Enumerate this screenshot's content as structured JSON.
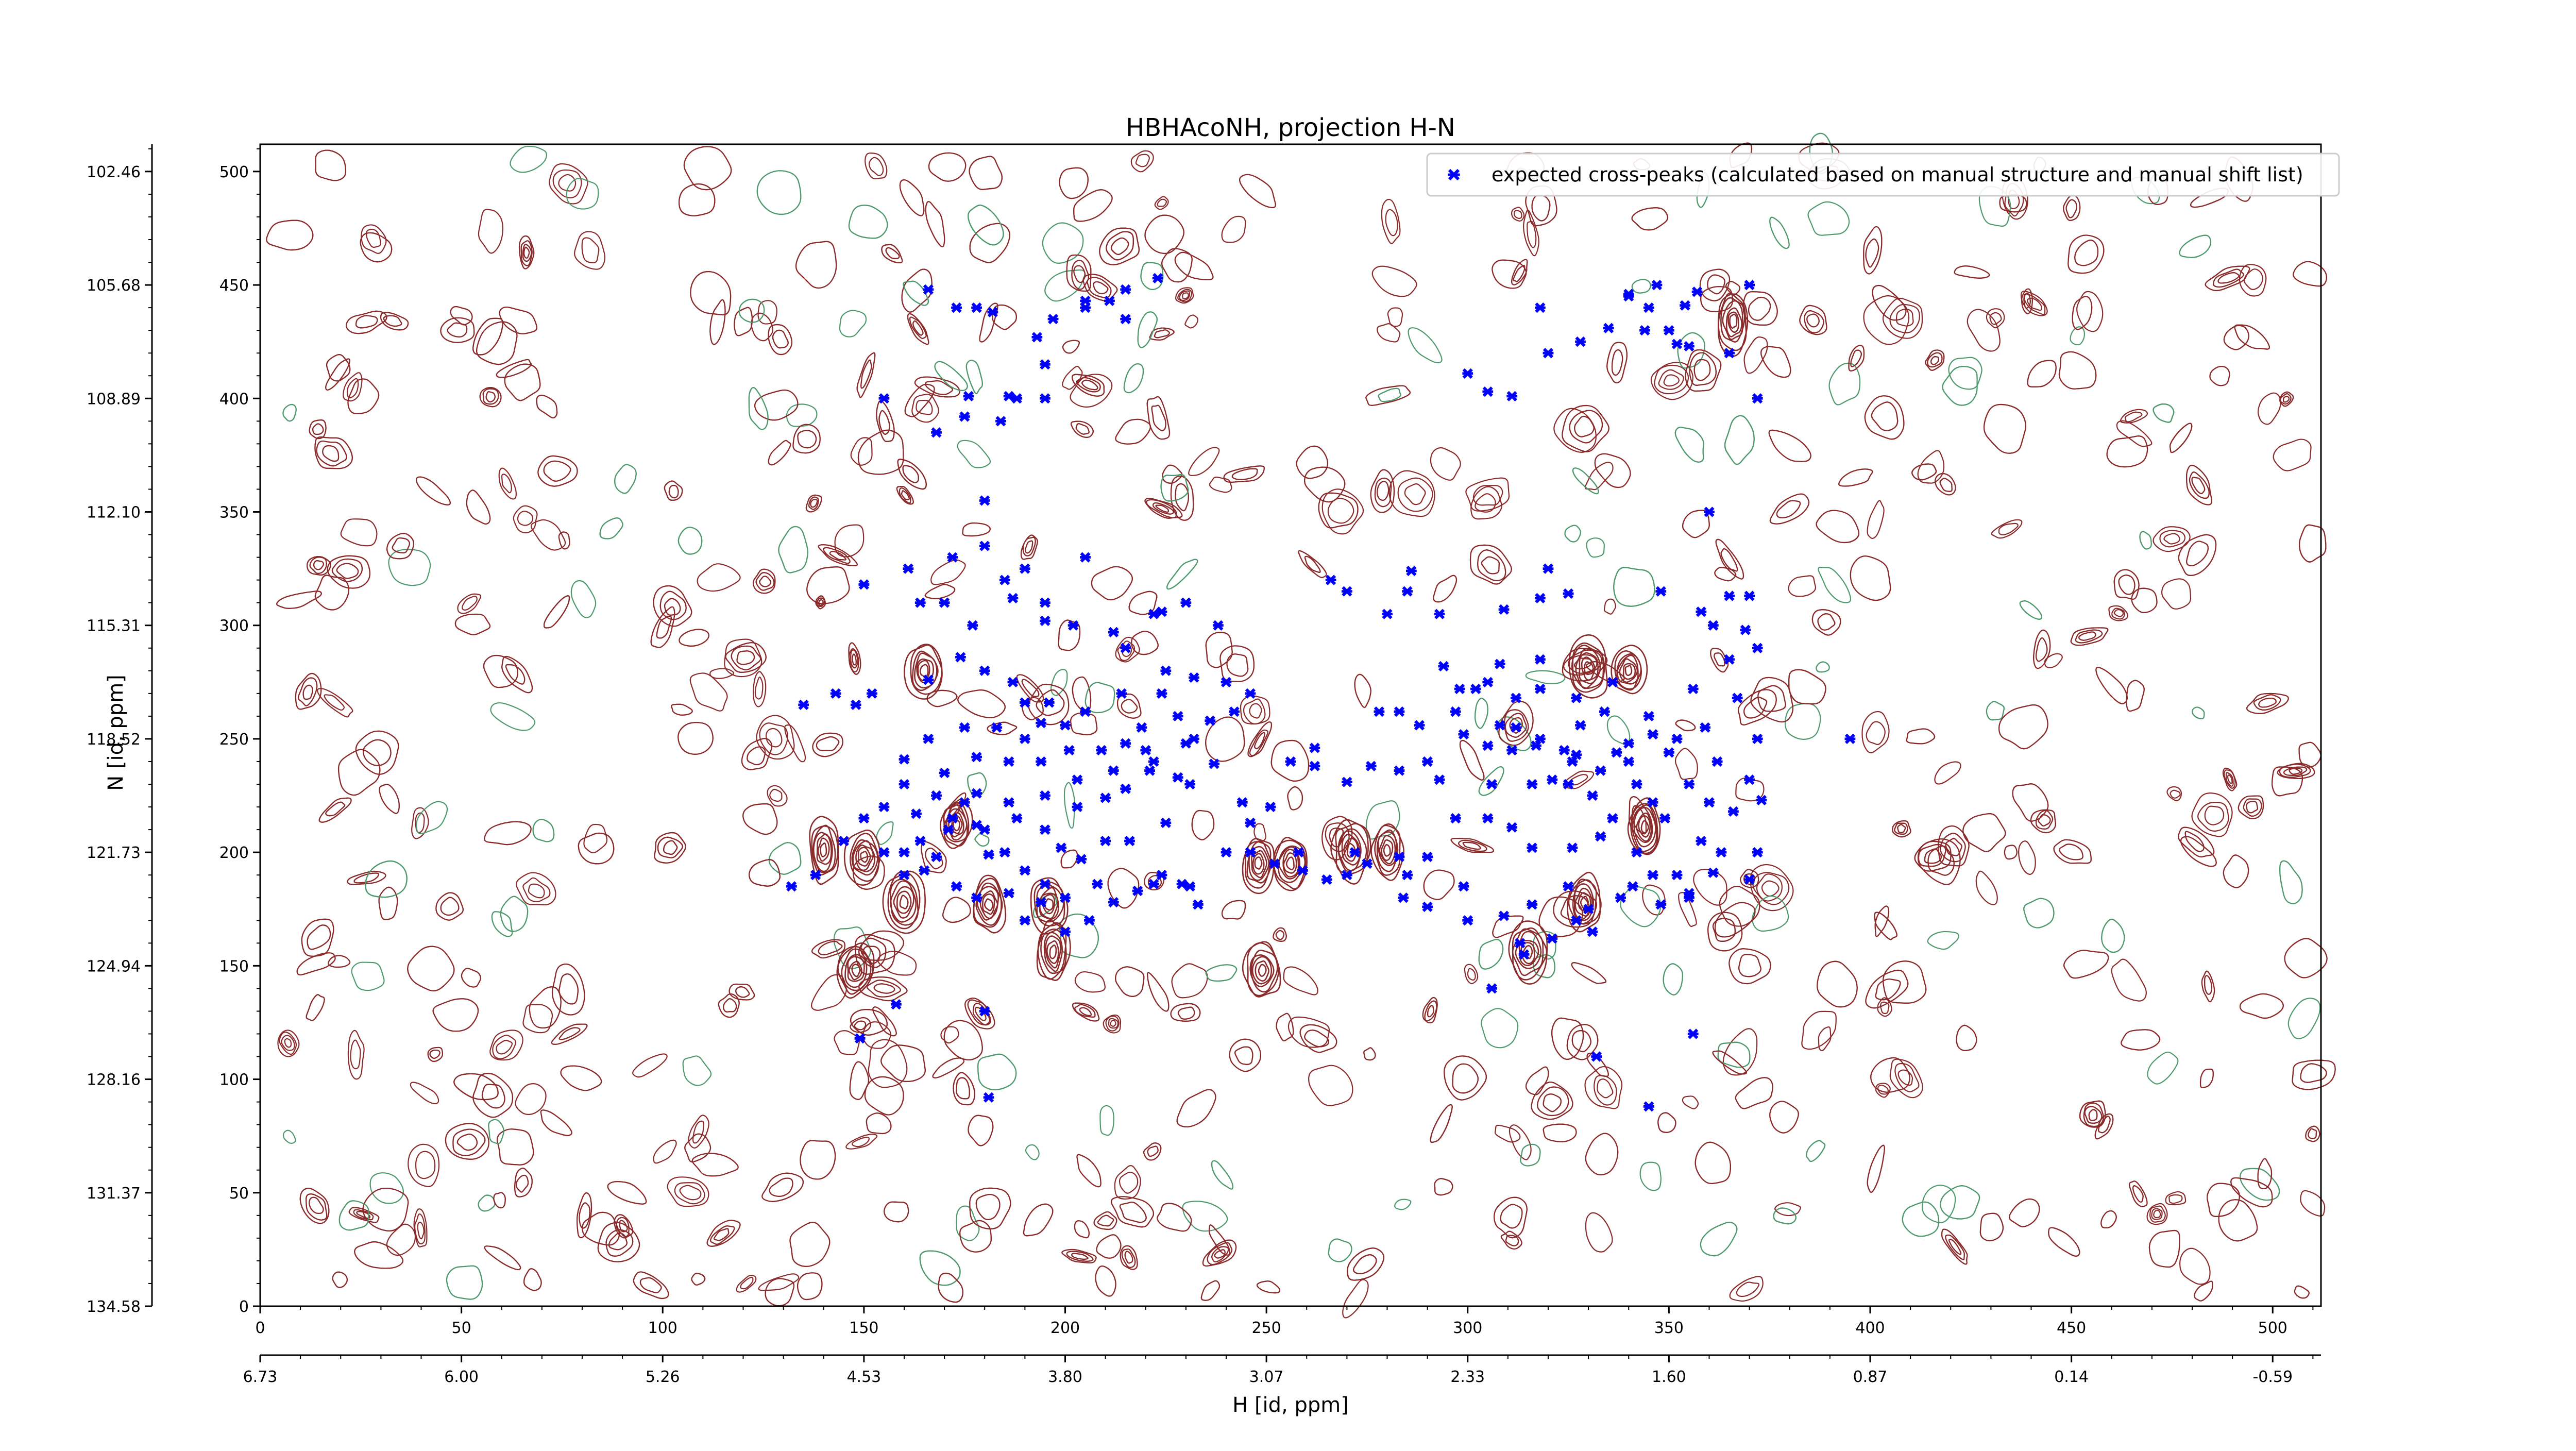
{
  "chart_data": {
    "type": "contour",
    "title": "HBHAcoNH, projection H-N",
    "xlabel": "H [id, ppm]",
    "ylabel": "N [id, ppm]",
    "x_index_range": [
      0,
      512
    ],
    "y_index_range": [
      0,
      512
    ],
    "x_index_ticks": [
      "0",
      "50",
      "100",
      "150",
      "200",
      "250",
      "300",
      "350",
      "400",
      "450",
      "500"
    ],
    "y_index_ticks": [
      "0",
      "50",
      "100",
      "150",
      "200",
      "250",
      "300",
      "350",
      "400",
      "450",
      "500"
    ],
    "x_ppm_ticks": [
      "6.73",
      "6.00",
      "5.26",
      "4.53",
      "3.80",
      "3.07",
      "2.33",
      "1.60",
      "0.87",
      "0.14",
      "-0.59"
    ],
    "y_ppm_ticks": [
      "134.58",
      "131.37",
      "128.16",
      "124.94",
      "121.73",
      "118.52",
      "115.31",
      "112.10",
      "108.89",
      "105.68",
      "102.46"
    ],
    "legend": {
      "position": "upper-right",
      "entries": [
        {
          "label": "expected cross-peaks (calculated based on manual structure and manual shift list)",
          "marker": "x",
          "color": "#0000ff"
        }
      ]
    },
    "colors": {
      "positive_contour": "#8b2a2a",
      "negative_contour": "#4e9a6e",
      "marker": "#0000ff"
    },
    "strong_peaks": [
      [
        140,
        201
      ],
      [
        150,
        198
      ],
      [
        148,
        148
      ],
      [
        160,
        178
      ],
      [
        165,
        280
      ],
      [
        173,
        212
      ],
      [
        181,
        177
      ],
      [
        196,
        177
      ],
      [
        197,
        156
      ],
      [
        248,
        195
      ],
      [
        256,
        195
      ],
      [
        249,
        148
      ],
      [
        271,
        201
      ],
      [
        280,
        201
      ],
      [
        315,
        156
      ],
      [
        329,
        178
      ],
      [
        330,
        281
      ],
      [
        340,
        280
      ],
      [
        344,
        211
      ],
      [
        366,
        434
      ]
    ],
    "series": [
      {
        "name": "expected cross-peaks (calculated based on manual structure and manual shift list)",
        "points": [
          [
            173,
            440
          ],
          [
            178,
            440
          ],
          [
            176,
            401
          ],
          [
            186,
            401
          ],
          [
            166,
            448
          ],
          [
            193,
            427
          ],
          [
            197,
            435
          ],
          [
            205,
            443
          ],
          [
            211,
            443
          ],
          [
            215,
            448
          ],
          [
            155,
            400
          ],
          [
            170,
            310
          ],
          [
            164,
            310
          ],
          [
            187,
            312
          ],
          [
            177,
            300
          ],
          [
            195,
            310
          ],
          [
            190,
            325
          ],
          [
            205,
            330
          ],
          [
            180,
            355
          ],
          [
            150,
            318
          ],
          [
            135,
            265
          ],
          [
            143,
            270
          ],
          [
            148,
            265
          ],
          [
            152,
            270
          ],
          [
            166,
            276
          ],
          [
            174,
            286
          ],
          [
            180,
            280
          ],
          [
            187,
            275
          ],
          [
            190,
            266
          ],
          [
            190,
            250
          ],
          [
            166,
            250
          ],
          [
            175,
            255
          ],
          [
            183,
            255
          ],
          [
            194,
            257
          ],
          [
            200,
            256
          ],
          [
            196,
            266
          ],
          [
            205,
            262
          ],
          [
            209,
            245
          ],
          [
            215,
            248
          ],
          [
            219,
            255
          ],
          [
            160,
            241
          ],
          [
            170,
            235
          ],
          [
            178,
            242
          ],
          [
            186,
            240
          ],
          [
            194,
            240
          ],
          [
            201,
            245
          ],
          [
            212,
            236
          ],
          [
            221,
            236
          ],
          [
            228,
            233
          ],
          [
            237,
            239
          ],
          [
            160,
            230
          ],
          [
            168,
            225
          ],
          [
            178,
            226
          ],
          [
            186,
            222
          ],
          [
            195,
            225
          ],
          [
            203,
            232
          ],
          [
            210,
            224
          ],
          [
            215,
            228
          ],
          [
            231,
            230
          ],
          [
            222,
            240
          ],
          [
            150,
            215
          ],
          [
            155,
            220
          ],
          [
            163,
            217
          ],
          [
            171,
            210
          ],
          [
            180,
            210
          ],
          [
            188,
            215
          ],
          [
            195,
            210
          ],
          [
            203,
            220
          ],
          [
            216,
            205
          ],
          [
            225,
            213
          ],
          [
            132,
            185
          ],
          [
            138,
            190
          ],
          [
            145,
            205
          ],
          [
            155,
            200
          ],
          [
            160,
            190
          ],
          [
            165,
            192
          ],
          [
            173,
            185
          ],
          [
            178,
            180
          ],
          [
            186,
            182
          ],
          [
            195,
            186
          ],
          [
            200,
            180
          ],
          [
            208,
            186
          ],
          [
            218,
            183
          ],
          [
            222,
            186
          ],
          [
            229,
            186
          ],
          [
            233,
            177
          ],
          [
            240,
            200
          ],
          [
            246,
            213
          ],
          [
            252,
            195
          ],
          [
            258,
            200
          ],
          [
            265,
            188
          ],
          [
            272,
            200
          ],
          [
            283,
            198
          ],
          [
            290,
            198
          ],
          [
            297,
            215
          ],
          [
            305,
            215
          ],
          [
            311,
            211
          ],
          [
            316,
            202
          ],
          [
            326,
            202
          ],
          [
            333,
            207
          ],
          [
            262,
            238
          ],
          [
            270,
            231
          ],
          [
            276,
            238
          ],
          [
            283,
            236
          ],
          [
            293,
            232
          ],
          [
            306,
            230
          ],
          [
            316,
            230
          ],
          [
            321,
            232
          ],
          [
            326,
            240
          ],
          [
            333,
            236
          ],
          [
            278,
            262
          ],
          [
            288,
            256
          ],
          [
            297,
            262
          ],
          [
            308,
            256
          ],
          [
            312,
            255
          ],
          [
            317,
            247
          ],
          [
            324,
            245
          ],
          [
            328,
            256
          ],
          [
            334,
            262
          ],
          [
            345,
            260
          ],
          [
            256,
            240
          ],
          [
            262,
            246
          ],
          [
            251,
            220
          ],
          [
            244,
            222
          ],
          [
            298,
            272
          ],
          [
            305,
            275
          ],
          [
            312,
            268
          ],
          [
            318,
            272
          ],
          [
            327,
            268
          ],
          [
            336,
            275
          ],
          [
            340,
            240
          ],
          [
            352,
            250
          ],
          [
            355,
            230
          ],
          [
            360,
            222
          ],
          [
            366,
            218
          ],
          [
            363,
            200
          ],
          [
            352,
            190
          ],
          [
            370,
            188
          ],
          [
            372,
            200
          ],
          [
            349,
            215
          ],
          [
            346,
            222
          ],
          [
            342,
            230
          ],
          [
            331,
            225
          ],
          [
            325,
            230
          ],
          [
            336,
            215
          ],
          [
            358,
            205
          ],
          [
            342,
            200
          ],
          [
            355,
            180
          ],
          [
            361,
            191
          ],
          [
            330,
            175
          ],
          [
            321,
            162
          ],
          [
            327,
            170
          ],
          [
            313,
            160
          ],
          [
            306,
            140
          ],
          [
            314,
            155
          ],
          [
            331,
            165
          ],
          [
            338,
            180
          ],
          [
            348,
            177
          ],
          [
            355,
            182
          ],
          [
            346,
            190
          ],
          [
            283,
            262
          ],
          [
            290,
            240
          ],
          [
            299,
            252
          ],
          [
            305,
            247
          ],
          [
            318,
            250
          ],
          [
            327,
            243
          ],
          [
            311,
            245
          ],
          [
            337,
            244
          ],
          [
            346,
            252
          ],
          [
            359,
            255
          ],
          [
            286,
            324
          ],
          [
            280,
            305
          ],
          [
            270,
            315
          ],
          [
            266,
            320
          ],
          [
            285,
            315
          ],
          [
            293,
            305
          ],
          [
            309,
            307
          ],
          [
            318,
            312
          ],
          [
            320,
            325
          ],
          [
            325,
            314
          ],
          [
            318,
            285
          ],
          [
            308,
            283
          ],
          [
            302,
            272
          ],
          [
            294,
            282
          ],
          [
            340,
            248
          ],
          [
            350,
            244
          ],
          [
            362,
            240
          ],
          [
            370,
            232
          ],
          [
            373,
            223
          ],
          [
            360,
            350
          ],
          [
            358,
            306
          ],
          [
            370,
            313
          ],
          [
            365,
            313
          ],
          [
            348,
            315
          ],
          [
            365,
            285
          ],
          [
            356,
            272
          ],
          [
            367,
            268
          ],
          [
            372,
            290
          ],
          [
            361,
            300
          ],
          [
            369,
            298
          ],
          [
            318,
            440
          ],
          [
            340,
            446
          ],
          [
            347,
            450
          ],
          [
            350,
            430
          ],
          [
            345,
            440
          ],
          [
            355,
            423
          ],
          [
            357,
            447
          ],
          [
            372,
            400
          ],
          [
            365,
            420
          ],
          [
            370,
            450
          ],
          [
            305,
            403
          ],
          [
            320,
            420
          ],
          [
            328,
            425
          ],
          [
            340,
            445
          ],
          [
            354,
            441
          ],
          [
            344,
            430
          ],
          [
            352,
            424
          ],
          [
            335,
            431
          ],
          [
            300,
            411
          ],
          [
            311,
            401
          ],
          [
            205,
            440
          ],
          [
            215,
            435
          ],
          [
            223,
            453
          ],
          [
            182,
            438
          ],
          [
            195,
            400
          ],
          [
            188,
            400
          ],
          [
            175,
            392
          ],
          [
            168,
            385
          ],
          [
            184,
            390
          ],
          [
            195,
            415
          ],
          [
            180,
            335
          ],
          [
            172,
            330
          ],
          [
            161,
            325
          ],
          [
            185,
            320
          ],
          [
            195,
            302
          ],
          [
            202,
            300
          ],
          [
            212,
            297
          ],
          [
            222,
            305
          ],
          [
            230,
            310
          ],
          [
            238,
            300
          ],
          [
            224,
            306
          ],
          [
            215,
            290
          ],
          [
            225,
            280
          ],
          [
            232,
            277
          ],
          [
            214,
            270
          ],
          [
            240,
            275
          ],
          [
            246,
            270
          ],
          [
            242,
            262
          ],
          [
            236,
            258
          ],
          [
            232,
            250
          ],
          [
            160,
            200
          ],
          [
            164,
            205
          ],
          [
            172,
            215
          ],
          [
            175,
            222
          ],
          [
            181,
            199
          ],
          [
            185,
            200
          ],
          [
            190,
            192
          ],
          [
            199,
            202
          ],
          [
            204,
            197
          ],
          [
            210,
            205
          ],
          [
            194,
            178
          ],
          [
            190,
            170
          ],
          [
            200,
            165
          ],
          [
            206,
            170
          ],
          [
            212,
            178
          ],
          [
            224,
            190
          ],
          [
            231,
            185
          ],
          [
            246,
            200
          ],
          [
            259,
            192
          ],
          [
            270,
            190
          ],
          [
            275,
            195
          ],
          [
            285,
            190
          ],
          [
            284,
            180
          ],
          [
            299,
            185
          ],
          [
            290,
            176
          ],
          [
            300,
            170
          ],
          [
            309,
            172
          ],
          [
            316,
            177
          ],
          [
            325,
            185
          ],
          [
            341,
            185
          ],
          [
            149,
            118
          ],
          [
            158,
            133
          ],
          [
            180,
            130
          ],
          [
            181,
            92
          ],
          [
            220,
            245
          ],
          [
            230,
            248
          ],
          [
            228,
            260
          ],
          [
            224,
            270
          ],
          [
            178,
            212
          ],
          [
            168,
            198
          ],
          [
            395,
            250
          ],
          [
            372,
            250
          ],
          [
            356,
            120
          ],
          [
            345,
            88
          ],
          [
            332,
            110
          ]
        ]
      }
    ]
  }
}
